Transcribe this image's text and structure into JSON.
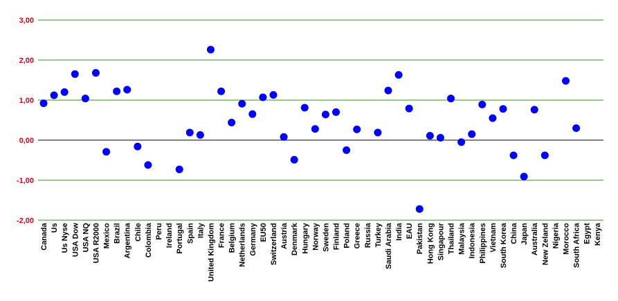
{
  "chart_data": {
    "type": "scatter",
    "title": "",
    "xlabel": "",
    "ylabel": "",
    "ylim": [
      -2,
      3
    ],
    "yticks": [
      3,
      2,
      1,
      0,
      -1,
      -2
    ],
    "ytick_labels": [
      "3,00",
      "2,00",
      "1,00",
      "0,00",
      "-1,00",
      "-2,00"
    ],
    "grid": "horizontal",
    "legend": "none",
    "colors": {
      "marker": "#0000ff",
      "grid": "#3e8e1e",
      "zero_line": "#000000",
      "ytick": "#e0001b"
    },
    "categories": [
      "Canada",
      "Us",
      "Us Nyse",
      "USA Dow",
      "USA NQ",
      "USA R2000",
      "Mexico",
      "Brazil",
      "Argentina",
      "Chile",
      "Colombia",
      "Peru",
      "Ireland",
      "Portugal",
      "Spain",
      "Italy",
      "United Kingdom",
      "France",
      "Belgium",
      "Netherlands",
      "Germany",
      "EU50",
      "Switzerland",
      "Austria",
      "Denmark",
      "Hungary",
      "Norway",
      "Sweden",
      "Finland",
      "Poland",
      "Greece",
      "Russia",
      "Turkey",
      "Saudi Arabia",
      "India",
      "EAU",
      "Pakistan",
      "Hong Kong",
      "Singapour",
      "Thailand",
      "Malaysia",
      "Indonesia",
      "Philippines",
      "Vietnam",
      "South Korea",
      "China",
      "Japan",
      "Australia",
      "New Zeland",
      "Nigeria",
      "Morocco",
      "South Africa",
      "Egypt",
      "Kenya"
    ],
    "values": [
      0.92,
      1.12,
      1.2,
      1.65,
      1.04,
      1.68,
      -0.29,
      1.22,
      1.26,
      -0.16,
      -0.62,
      null,
      null,
      -0.73,
      0.19,
      0.13,
      2.26,
      1.22,
      0.44,
      0.91,
      0.65,
      1.07,
      1.13,
      0.08,
      -0.49,
      0.81,
      0.28,
      0.64,
      0.7,
      -0.25,
      0.27,
      null,
      0.19,
      1.24,
      1.63,
      0.79,
      -1.72,
      0.11,
      0.06,
      1.04,
      -0.05,
      0.15,
      0.89,
      0.55,
      0.78,
      -0.38,
      -0.91,
      0.76,
      -0.38,
      null,
      1.48,
      0.3,
      null,
      null
    ]
  }
}
